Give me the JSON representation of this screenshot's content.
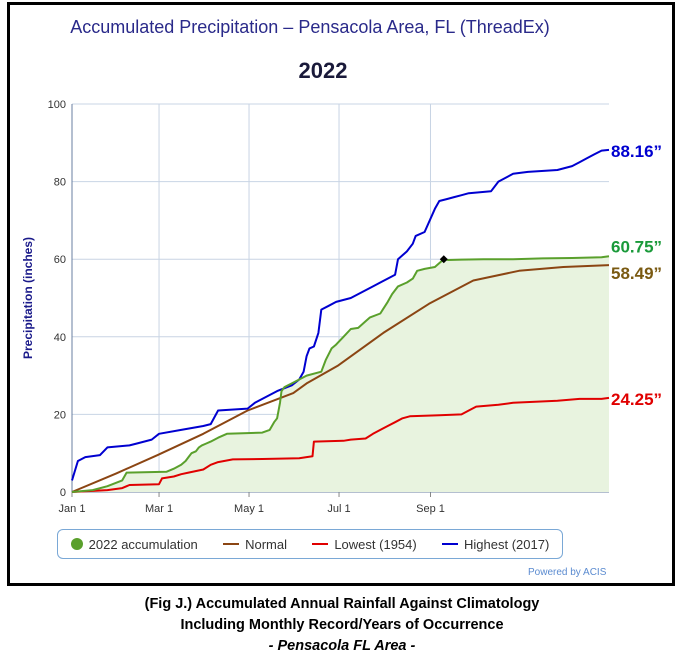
{
  "title": "Accumulated Precipitation – Pensacola Area, FL (ThreadEx)",
  "subtitle": "2022",
  "powered_by": "Powered by ACIS",
  "caption": {
    "line1": "(Fig J.) Accumulated Annual Rainfall Against  Climatology",
    "line2": "Including Monthly Record/Years of Occurrence",
    "line3": "- Pensacola FL Area -"
  },
  "legend": [
    {
      "label": "2022 accumulation",
      "color": "#5aa02c",
      "marker": "dot"
    },
    {
      "label": "Normal",
      "color": "#8b4513",
      "marker": "line"
    },
    {
      "label": "Lowest (1954)",
      "color": "#e00000",
      "marker": "line"
    },
    {
      "label": "Highest (2017)",
      "color": "#0000d0",
      "marker": "line"
    }
  ],
  "end_labels": [
    {
      "text": "88.16”",
      "color": "#0000d0",
      "value": 88.16
    },
    {
      "text": "60.75”",
      "color": "#1a9a3a",
      "value": 60.75
    },
    {
      "text": "58.49”",
      "color": "#7a5a12",
      "value": 58.49
    },
    {
      "text": "24.25”",
      "color": "#e00000",
      "value": 24.25
    }
  ],
  "chart_data": {
    "type": "line",
    "title": "Accumulated Precipitation – Pensacola Area, FL (ThreadEx)",
    "subtitle": "2022",
    "ylabel": "Precipitation (inches)",
    "xlabel": "",
    "ylim": [
      0,
      100
    ],
    "yticks": [
      0,
      20,
      40,
      60,
      80,
      100
    ],
    "xlim_day": [
      1,
      365
    ],
    "xticks": [
      {
        "label": "Jan 1",
        "day": 1
      },
      {
        "label": "Mar 1",
        "day": 60
      },
      {
        "label": "May 1",
        "day": 121
      },
      {
        "label": "Jul 1",
        "day": 182
      },
      {
        "label": "Sep 1",
        "day": 244
      }
    ],
    "grid": true,
    "legend_position": "bottom",
    "series": [
      {
        "name": "2022 accumulation",
        "color": "#5aa02c",
        "filled": true,
        "points": [
          [
            1,
            0
          ],
          [
            15,
            0.5
          ],
          [
            25,
            1.5
          ],
          [
            35,
            3
          ],
          [
            38,
            5
          ],
          [
            65,
            5.2
          ],
          [
            70,
            6
          ],
          [
            75,
            7
          ],
          [
            78,
            8
          ],
          [
            80,
            9
          ],
          [
            82,
            10
          ],
          [
            85,
            10.5
          ],
          [
            87,
            11.5
          ],
          [
            89,
            12
          ],
          [
            92,
            12.5
          ],
          [
            95,
            13
          ],
          [
            100,
            14
          ],
          [
            106,
            15
          ],
          [
            130,
            15.3
          ],
          [
            135,
            16
          ],
          [
            138,
            18
          ],
          [
            140,
            19
          ],
          [
            142,
            23
          ],
          [
            143,
            26
          ],
          [
            145,
            27
          ],
          [
            150,
            28
          ],
          [
            155,
            29
          ],
          [
            160,
            30
          ],
          [
            170,
            31
          ],
          [
            173,
            34
          ],
          [
            177,
            37
          ],
          [
            180,
            38
          ],
          [
            185,
            40
          ],
          [
            190,
            42
          ],
          [
            195,
            42.3
          ],
          [
            200,
            44
          ],
          [
            203,
            45
          ],
          [
            210,
            46
          ],
          [
            215,
            49
          ],
          [
            218,
            51
          ],
          [
            222,
            53
          ],
          [
            228,
            54
          ],
          [
            232,
            55
          ],
          [
            235,
            57
          ],
          [
            240,
            57.5
          ],
          [
            247,
            58
          ],
          [
            250,
            59
          ],
          [
            253,
            60
          ],
          [
            256,
            59.8
          ],
          [
            265,
            59.9
          ],
          [
            280,
            60
          ],
          [
            300,
            60
          ],
          [
            320,
            60.2
          ],
          [
            340,
            60.3
          ],
          [
            360,
            60.5
          ],
          [
            365,
            60.75
          ]
        ]
      },
      {
        "name": "Normal",
        "color": "#8b4513",
        "points": [
          [
            1,
            0
          ],
          [
            31,
            4.8
          ],
          [
            59,
            9.5
          ],
          [
            90,
            15
          ],
          [
            120,
            21
          ],
          [
            151,
            25.5
          ],
          [
            160,
            28
          ],
          [
            181,
            32.5
          ],
          [
            212,
            41
          ],
          [
            243,
            48.5
          ],
          [
            273,
            54.5
          ],
          [
            304,
            57
          ],
          [
            334,
            58
          ],
          [
            365,
            58.49
          ]
        ]
      },
      {
        "name": "Lowest (1954)",
        "color": "#e00000",
        "points": [
          [
            1,
            0
          ],
          [
            25,
            0.5
          ],
          [
            35,
            1
          ],
          [
            40,
            1.8
          ],
          [
            60,
            2
          ],
          [
            62,
            3.5
          ],
          [
            70,
            4
          ],
          [
            75,
            4.6
          ],
          [
            80,
            5
          ],
          [
            90,
            5.8
          ],
          [
            95,
            7
          ],
          [
            100,
            7.7
          ],
          [
            110,
            8.4
          ],
          [
            130,
            8.5
          ],
          [
            155,
            8.7
          ],
          [
            160,
            9
          ],
          [
            164,
            9.2
          ],
          [
            165,
            13
          ],
          [
            185,
            13.2
          ],
          [
            190,
            13.5
          ],
          [
            200,
            13.8
          ],
          [
            205,
            15
          ],
          [
            210,
            16
          ],
          [
            215,
            17
          ],
          [
            220,
            18
          ],
          [
            225,
            19
          ],
          [
            230,
            19.5
          ],
          [
            250,
            19.8
          ],
          [
            265,
            20
          ],
          [
            270,
            21
          ],
          [
            275,
            22
          ],
          [
            290,
            22.5
          ],
          [
            300,
            23
          ],
          [
            330,
            23.5
          ],
          [
            345,
            24
          ],
          [
            360,
            24
          ],
          [
            365,
            24.25
          ]
        ]
      },
      {
        "name": "Highest (2017)",
        "color": "#0000d0",
        "points": [
          [
            1,
            3
          ],
          [
            5,
            8
          ],
          [
            10,
            9
          ],
          [
            20,
            9.5
          ],
          [
            25,
            11.5
          ],
          [
            40,
            12
          ],
          [
            45,
            12.5
          ],
          [
            55,
            13.5
          ],
          [
            60,
            15
          ],
          [
            75,
            16
          ],
          [
            90,
            17
          ],
          [
            95,
            17.5
          ],
          [
            100,
            21
          ],
          [
            120,
            21.5
          ],
          [
            125,
            23
          ],
          [
            130,
            24
          ],
          [
            140,
            26
          ],
          [
            150,
            27.5
          ],
          [
            155,
            29
          ],
          [
            158,
            31
          ],
          [
            160,
            35
          ],
          [
            162,
            37
          ],
          [
            165,
            37.5
          ],
          [
            168,
            41
          ],
          [
            170,
            47
          ],
          [
            175,
            48
          ],
          [
            180,
            49
          ],
          [
            190,
            50
          ],
          [
            195,
            51
          ],
          [
            200,
            52
          ],
          [
            205,
            53
          ],
          [
            210,
            54
          ],
          [
            215,
            55
          ],
          [
            220,
            56
          ],
          [
            222,
            60
          ],
          [
            225,
            61
          ],
          [
            228,
            62
          ],
          [
            232,
            64
          ],
          [
            234,
            66
          ],
          [
            240,
            67
          ],
          [
            247,
            73
          ],
          [
            250,
            75
          ],
          [
            255,
            75.5
          ],
          [
            260,
            76
          ],
          [
            265,
            76.5
          ],
          [
            270,
            77
          ],
          [
            285,
            77.5
          ],
          [
            290,
            80
          ],
          [
            300,
            82
          ],
          [
            310,
            82.5
          ],
          [
            330,
            83
          ],
          [
            340,
            84
          ],
          [
            345,
            85
          ],
          [
            350,
            86
          ],
          [
            355,
            87
          ],
          [
            360,
            88
          ],
          [
            365,
            88.16
          ]
        ]
      }
    ],
    "markers": [
      {
        "name": "2022 current",
        "day": 253,
        "value": 60
      }
    ]
  }
}
